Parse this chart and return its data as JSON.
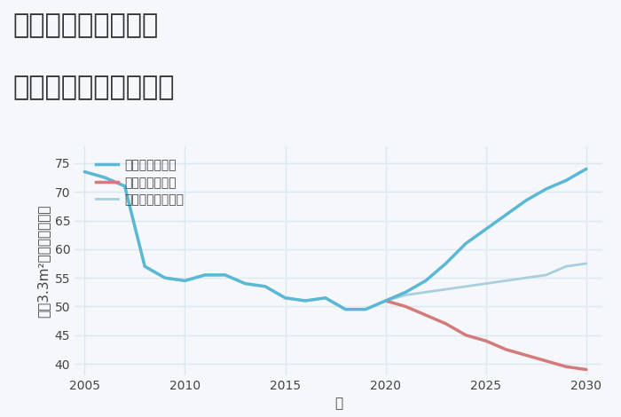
{
  "title_line1": "三重県津市中村町の",
  "title_line2": "中古戸建ての価格推移",
  "xlabel": "年",
  "ylabel": "坪（3.3m²）単価（万円）",
  "background_color": "#f5f7fa",
  "plot_bg_color": "#f5f7fa",
  "grid_color": "#dce8f0",
  "good_scenario": {
    "label": "グッドシナリオ",
    "color": "#5bb8d4",
    "linewidth": 2.5,
    "years": [
      2005,
      2006,
      2007,
      2008,
      2009,
      2010,
      2011,
      2012,
      2013,
      2014,
      2015,
      2016,
      2017,
      2018,
      2019,
      2020,
      2021,
      2022,
      2023,
      2024,
      2025,
      2026,
      2027,
      2028,
      2029,
      2030
    ],
    "values": [
      73.5,
      72.5,
      71.0,
      57.0,
      55.0,
      54.5,
      55.5,
      55.5,
      54.0,
      53.5,
      51.5,
      51.0,
      51.5,
      49.5,
      49.5,
      51.0,
      52.5,
      54.5,
      57.5,
      61.0,
      63.5,
      66.0,
      68.5,
      70.5,
      72.0,
      74.0
    ]
  },
  "bad_scenario": {
    "label": "バッドシナリオ",
    "color": "#d47a7a",
    "linewidth": 2.5,
    "years": [
      2020,
      2021,
      2022,
      2023,
      2024,
      2025,
      2026,
      2027,
      2028,
      2029,
      2030
    ],
    "values": [
      51.0,
      50.0,
      48.5,
      47.0,
      45.0,
      44.0,
      42.5,
      41.5,
      40.5,
      39.5,
      39.0
    ]
  },
  "normal_scenario": {
    "label": "ノーマルシナリオ",
    "color": "#a8cfe0",
    "linewidth": 2.0,
    "years": [
      2005,
      2006,
      2007,
      2008,
      2009,
      2010,
      2011,
      2012,
      2013,
      2014,
      2015,
      2016,
      2017,
      2018,
      2019,
      2020,
      2021,
      2022,
      2023,
      2024,
      2025,
      2026,
      2027,
      2028,
      2029,
      2030
    ],
    "values": [
      73.5,
      72.5,
      71.0,
      57.0,
      55.0,
      54.5,
      55.5,
      55.5,
      54.0,
      53.5,
      51.5,
      51.0,
      51.5,
      49.5,
      49.5,
      51.0,
      52.0,
      52.5,
      53.0,
      53.5,
      54.0,
      54.5,
      55.0,
      55.5,
      57.0,
      57.5
    ]
  },
  "xlim": [
    2004.5,
    2030.8
  ],
  "ylim": [
    38,
    78
  ],
  "yticks": [
    40,
    45,
    50,
    55,
    60,
    65,
    70,
    75
  ],
  "xticks": [
    2005,
    2010,
    2015,
    2020,
    2025,
    2030
  ],
  "title_fontsize": 22,
  "axis_label_fontsize": 11,
  "tick_fontsize": 10,
  "legend_fontsize": 10
}
